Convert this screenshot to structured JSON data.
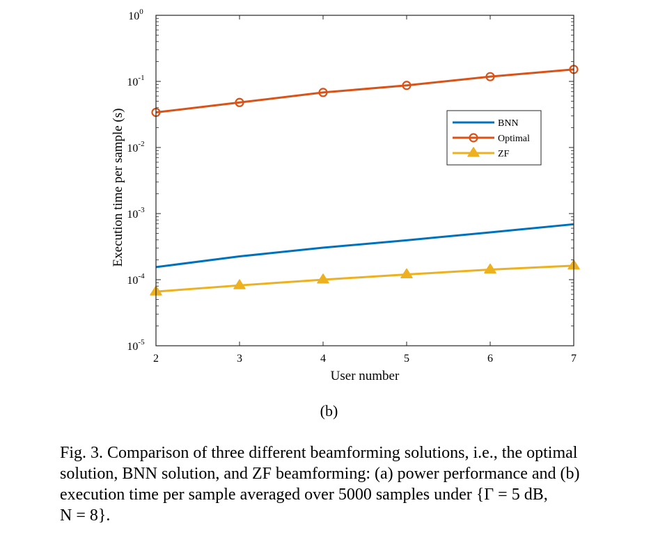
{
  "chart_data": {
    "type": "line",
    "xlabel": "User number",
    "ylabel": "Execution time per sample (s)",
    "yscale": "log",
    "xlim": [
      2,
      7
    ],
    "ylim": [
      1e-05,
      1
    ],
    "x_ticks": [
      "2",
      "3",
      "4",
      "5",
      "6",
      "7"
    ],
    "y_ticks": [
      {
        "base": "10",
        "exp": "0",
        "value": 1
      },
      {
        "base": "10",
        "exp": "-1",
        "value": 0.1
      },
      {
        "base": "10",
        "exp": "-2",
        "value": 0.01
      },
      {
        "base": "10",
        "exp": "-3",
        "value": 0.001
      },
      {
        "base": "10",
        "exp": "-4",
        "value": 0.0001
      },
      {
        "base": "10",
        "exp": "-5",
        "value": 1e-05
      }
    ],
    "x": [
      2,
      3,
      4,
      5,
      6,
      7
    ],
    "series": [
      {
        "name": "BNN",
        "color": "#0072BD",
        "marker": "none",
        "values": [
          0.000155,
          0.000225,
          0.000305,
          0.000395,
          0.00052,
          0.00069
        ]
      },
      {
        "name": "Optimal",
        "color": "#D95319",
        "marker": "circle",
        "values": [
          0.034,
          0.048,
          0.068,
          0.087,
          0.118,
          0.152
        ]
      },
      {
        "name": "ZF",
        "color": "#EDB120",
        "marker": "triangle",
        "values": [
          6.6e-05,
          8.2e-05,
          0.0001,
          0.00012,
          0.000142,
          0.000163
        ]
      }
    ],
    "legend_position": "inside-right",
    "grid": false
  },
  "subcaption": "(b)",
  "caption": {
    "line1": "Fig. 3.   Comparison of three different beamforming solutions, i.e., the optimal",
    "line2": "solution, BNN solution, and ZF beamforming: (a) power performance and (b)",
    "line3": "execution time per sample averaged over 5000 samples under {Γ = 5 dB,",
    "line4": "N = 8}."
  }
}
